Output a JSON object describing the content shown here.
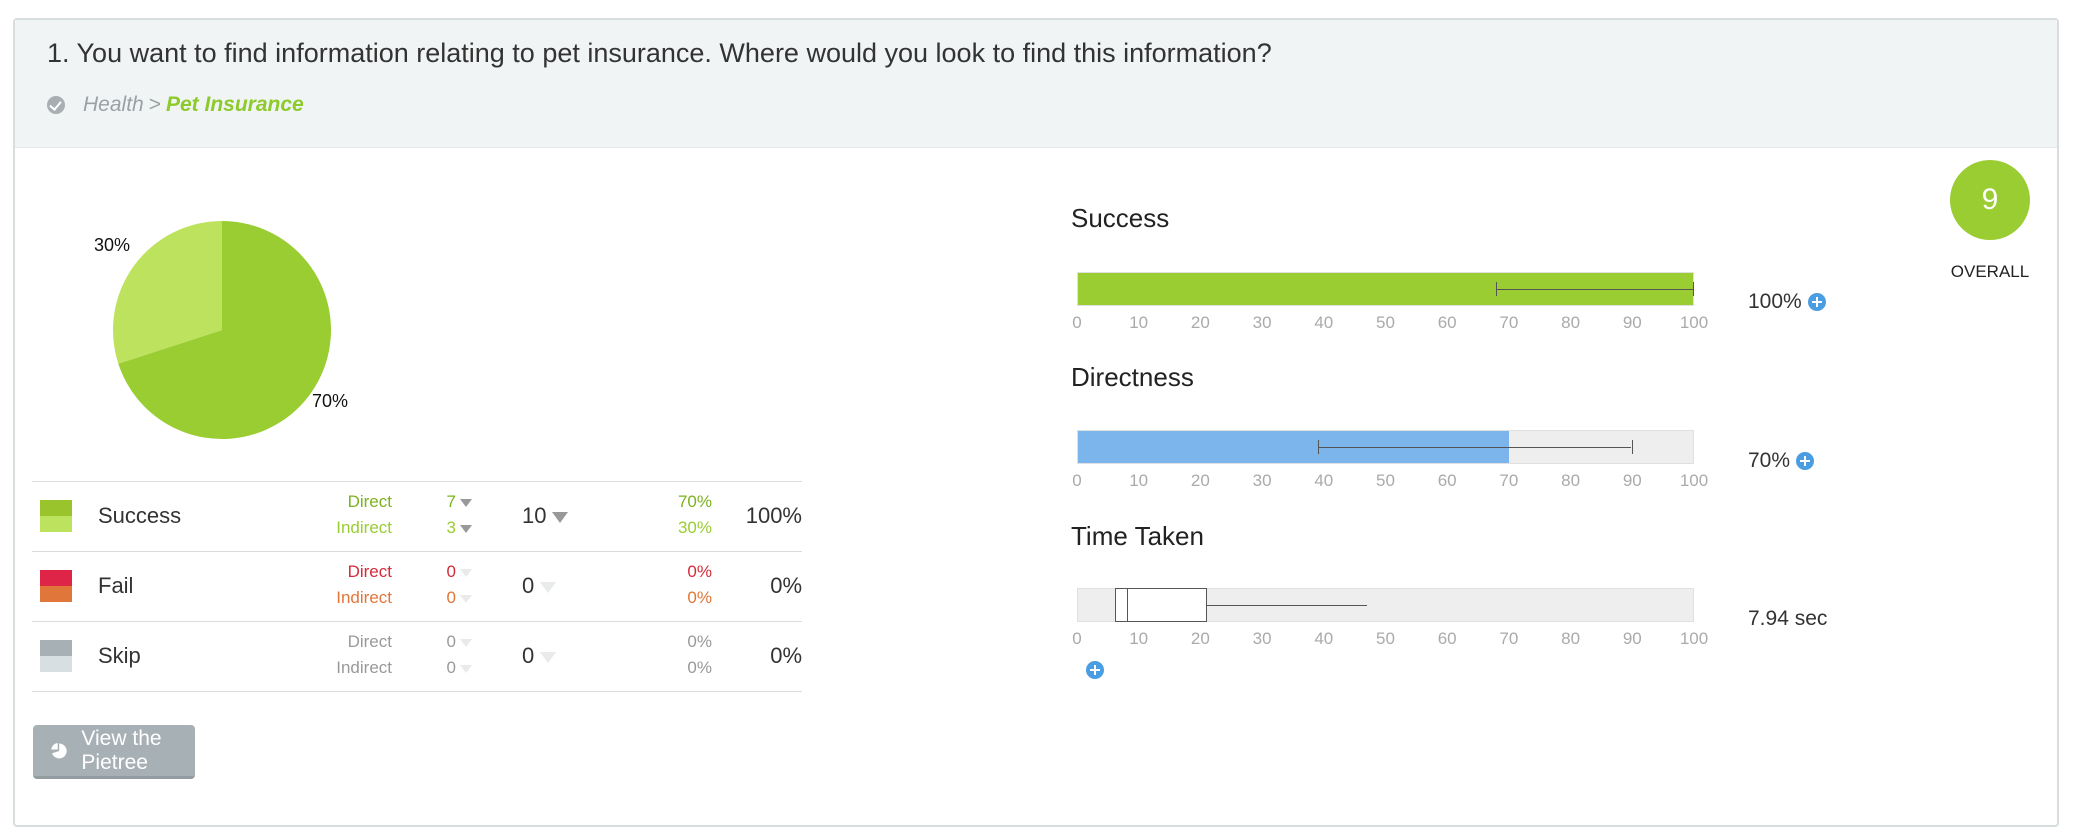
{
  "question": {
    "text": "1. You want to find information relating to pet insurance. Where would you look to find this information?",
    "breadcrumb_parent": "Health",
    "breadcrumb_sep": ">",
    "breadcrumb_current": "Pet Insurance"
  },
  "pie": {
    "slices": [
      {
        "label": "70%",
        "value": 70,
        "color": "#9acd32"
      },
      {
        "label": "30%",
        "value": 30,
        "color": "#bde35e"
      }
    ]
  },
  "results": {
    "rows": [
      {
        "label": "Success",
        "colors": {
          "direct": "#9ac42b",
          "indirect": "#bde35e",
          "text_direct": "#7bb31d",
          "text_indirect": "#9acd32"
        },
        "direct_label": "Direct",
        "indirect_label": "Indirect",
        "direct_count": "7",
        "indirect_count": "3",
        "total": "10",
        "direct_pct": "70%",
        "indirect_pct": "30%",
        "row_pct": "100%"
      },
      {
        "label": "Fail",
        "colors": {
          "direct": "#de2447",
          "indirect": "#e07639",
          "text_direct": "#d42b3a",
          "text_indirect": "#e07639"
        },
        "direct_label": "Direct",
        "indirect_label": "Indirect",
        "direct_count": "0",
        "indirect_count": "0",
        "total": "0",
        "direct_pct": "0%",
        "indirect_pct": "0%",
        "row_pct": "0%"
      },
      {
        "label": "Skip",
        "colors": {
          "direct": "#a7b0b5",
          "indirect": "#d8dfe2",
          "text_direct": "#999999",
          "text_indirect": "#999999"
        },
        "direct_label": "Direct",
        "indirect_label": "Indirect",
        "direct_count": "0",
        "indirect_count": "0",
        "total": "0",
        "direct_pct": "0%",
        "indirect_pct": "0%",
        "row_pct": "0%"
      }
    ]
  },
  "buttons": {
    "pietree_label": "View the Pietree"
  },
  "metrics": {
    "ticks": [
      "0",
      "10",
      "20",
      "30",
      "40",
      "50",
      "60",
      "70",
      "80",
      "90",
      "100"
    ],
    "success": {
      "title": "Success",
      "value": 100,
      "value_label": "100%",
      "whisker": [
        68,
        100
      ],
      "color": "#9acd32"
    },
    "directness": {
      "title": "Directness",
      "value": 70,
      "value_label": "70%",
      "whisker": [
        39,
        90
      ],
      "color": "#7cb5ec"
    },
    "time_taken": {
      "title": "Time Taken",
      "value_label": "7.94 sec",
      "box": {
        "min": 6,
        "median": 8,
        "q3": 21,
        "max": 47
      }
    }
  },
  "overall": {
    "score": "9",
    "label": "OVERALL",
    "color": "#9acd32"
  }
}
